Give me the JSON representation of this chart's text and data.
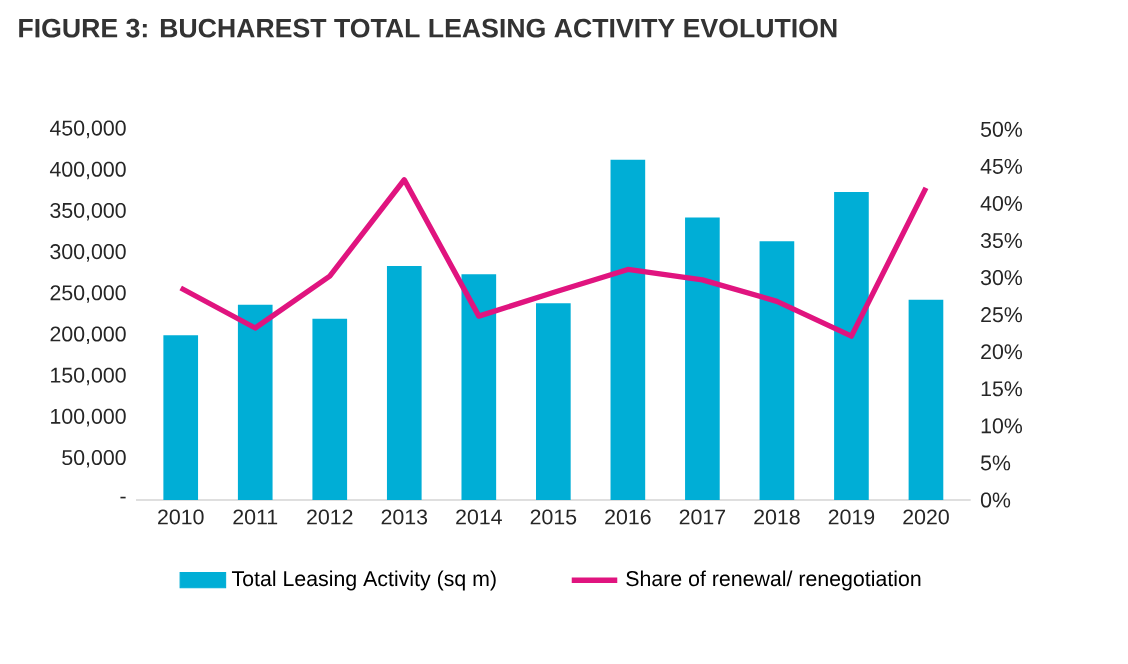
{
  "chart_data": {
    "type": "bar",
    "title": "FIGURE 3: BUCHAREST TOTAL LEASING ACTIVITY EVOLUTION",
    "categories": [
      "2010",
      "2011",
      "2012",
      "2013",
      "2014",
      "2015",
      "2016",
      "2017",
      "2018",
      "2019",
      "2020"
    ],
    "series": [
      {
        "name": "Total Leasing Activity (sq m)",
        "color": "#00aed6",
        "values": [
          200000,
          237000,
          220000,
          284000,
          274000,
          239000,
          413000,
          343000,
          314000,
          374000,
          243000
        ]
      },
      {
        "name": "Share of renewal/ renegotiation",
        "type": "line",
        "axis": "y2",
        "color": "#e0147f",
        "values": [
          28.6,
          23.2,
          30.2,
          43.2,
          24.8,
          28,
          31.1,
          29.7,
          26.8,
          22.1,
          42.1
        ]
      }
    ],
    "ylim": [
      0,
      450000
    ],
    "yticks": [
      {
        "value": 0,
        "label": "-"
      },
      {
        "value": 50000,
        "label": "50,000"
      },
      {
        "value": 100000,
        "label": "100,000"
      },
      {
        "value": 150000,
        "label": "150,000"
      },
      {
        "value": 200000,
        "label": "200,000"
      },
      {
        "value": 250000,
        "label": "250,000"
      },
      {
        "value": 300000,
        "label": "300,000"
      },
      {
        "value": 350000,
        "label": "350,000"
      },
      {
        "value": 400000,
        "label": "400,000"
      },
      {
        "value": 450000,
        "label": "450,000"
      }
    ],
    "y2lim": [
      0,
      50
    ],
    "y2ticks": [
      {
        "value": 0,
        "label": "0%"
      },
      {
        "value": 5,
        "label": "5%"
      },
      {
        "value": 10,
        "label": "10%"
      },
      {
        "value": 15,
        "label": "15%"
      },
      {
        "value": 20,
        "label": "20%"
      },
      {
        "value": 25,
        "label": "25%"
      },
      {
        "value": 30,
        "label": "30%"
      },
      {
        "value": 35,
        "label": "35%"
      },
      {
        "value": 40,
        "label": "40%"
      },
      {
        "value": 45,
        "label": "45%"
      },
      {
        "value": 50,
        "label": "50%"
      }
    ],
    "grid": false,
    "legend": "bottom"
  }
}
